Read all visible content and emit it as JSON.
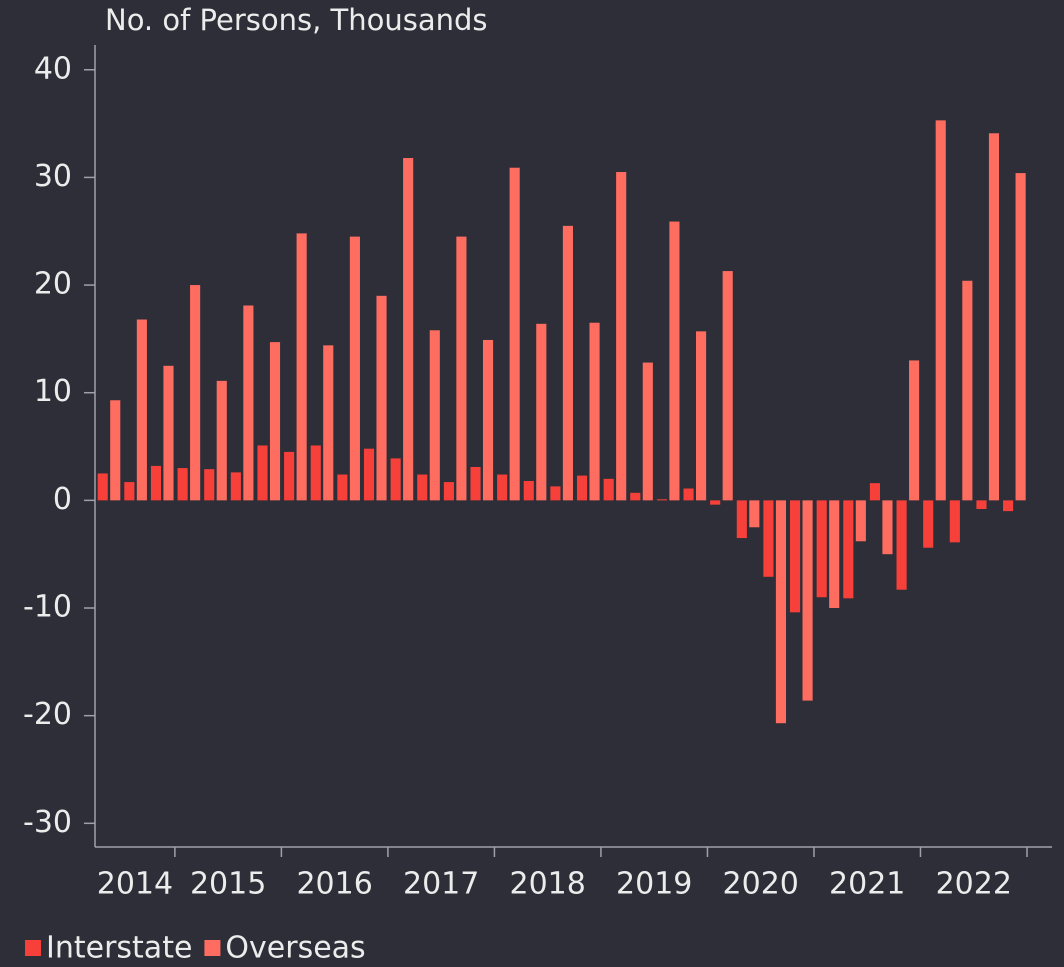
{
  "chart_data": {
    "type": "bar",
    "y_axis_label": "No. of Persons, Thousands",
    "categories": [
      "2014",
      null,
      null,
      "2015",
      null,
      null,
      null,
      "2016",
      null,
      null,
      null,
      "2017",
      null,
      null,
      null,
      "2018",
      null,
      null,
      null,
      "2019",
      null,
      null,
      null,
      "2020",
      null,
      null,
      null,
      "2021",
      null,
      null,
      null,
      "2022",
      null,
      null,
      null
    ],
    "series": [
      {
        "name": "Interstate",
        "color": "#f7403a",
        "values": [
          2.5,
          1.7,
          3.2,
          3.0,
          2.9,
          2.6,
          5.1,
          4.5,
          5.1,
          2.4,
          4.8,
          3.9,
          2.4,
          1.7,
          3.1,
          2.4,
          1.8,
          1.3,
          2.3,
          2.0,
          0.7,
          0.1,
          1.1,
          -0.4,
          -3.5,
          -7.1,
          -10.4,
          -9.0,
          -9.1,
          1.6,
          -8.3,
          -4.4,
          -3.9,
          -0.8,
          -1.0
        ]
      },
      {
        "name": "Overseas",
        "color": "#ff6d61",
        "values": [
          9.3,
          16.8,
          12.5,
          20.0,
          11.1,
          18.1,
          14.7,
          24.8,
          14.4,
          24.5,
          19.0,
          31.8,
          15.8,
          24.5,
          14.9,
          30.9,
          16.4,
          25.5,
          16.5,
          30.5,
          12.8,
          25.9,
          15.7,
          21.3,
          -2.5,
          -20.7,
          -18.6,
          -10.0,
          -3.8,
          -5.0,
          13.0,
          35.3,
          20.4,
          34.1,
          30.4
        ]
      }
    ],
    "ylim": [
      -32.2,
      42.3
    ],
    "yticks": [
      -30,
      -20,
      -10,
      0,
      10,
      20,
      30,
      40
    ],
    "grid": false,
    "legend": "bottom-left"
  }
}
